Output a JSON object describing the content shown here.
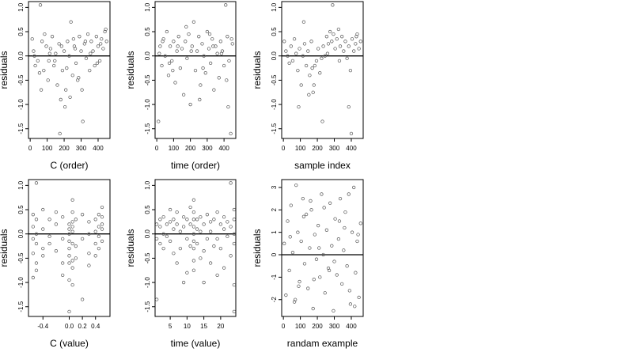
{
  "chart_data": [
    {
      "type": "scatter",
      "title": "",
      "xlabel": "C (order)",
      "ylabel": "residuals",
      "xlim": [
        -10,
        470
      ],
      "ylim": [
        -1.7,
        1.12
      ],
      "xticks": [
        0,
        100,
        200,
        300,
        400
      ],
      "xtick_labels": [
        "0",
        "100",
        "200",
        "300",
        "400"
      ],
      "yticks": [
        1.0,
        0.5,
        0.0,
        -0.5,
        -1.0,
        -1.5
      ],
      "ytick_labels": [
        "1.0",
        "0.5",
        "0.0",
        "-0.5",
        "-1.0",
        "-1.5"
      ],
      "reference_line_y": 0,
      "grid": false,
      "series": [
        {
          "x": [
            12,
            20,
            30,
            45,
            60,
            70,
            80,
            85,
            95,
            105,
            110,
            120,
            130,
            140,
            150,
            160,
            170,
            180,
            190,
            200,
            205,
            210,
            220,
            230,
            240,
            250,
            255,
            260,
            270,
            280,
            290,
            300,
            310,
            320,
            330,
            340,
            350,
            360,
            370,
            380,
            390,
            400,
            410,
            420,
            430,
            440,
            450,
            65,
            175,
            235,
            305,
            395,
            25,
            55,
            115,
            145,
            185,
            215,
            265,
            285,
            325,
            355,
            415,
            445
          ],
          "y": [
            0.35,
            0.1,
            -0.2,
            -0.1,
            1.05,
            0.3,
            -0.3,
            0.45,
            0.2,
            -0.5,
            -0.1,
            0.15,
            0.4,
            -0.2,
            0.05,
            -0.6,
            0.25,
            -0.9,
            -0.3,
            0.1,
            -1.05,
            -0.7,
            0.3,
            0.0,
            0.7,
            -0.4,
            0.35,
            0.2,
            -0.15,
            -0.5,
            0.4,
            0.1,
            -1.35,
            0.25,
            -0.05,
            0.45,
            -0.3,
            0.3,
            0.1,
            -0.2,
            0.4,
            0.2,
            -0.1,
            0.35,
            0.15,
            0.5,
            0.3,
            -0.7,
            -1.6,
            -0.85,
            -0.7,
            -0.15,
            0.0,
            -0.35,
            0.05,
            -0.1,
            0.2,
            -0.25,
            0.15,
            -0.45,
            0.3,
            0.05,
            0.25,
            0.55
          ]
        }
      ]
    },
    {
      "type": "scatter",
      "title": "",
      "xlabel": "time (order)",
      "ylabel": "residuals",
      "xlim": [
        -10,
        470
      ],
      "ylim": [
        -1.7,
        1.12
      ],
      "xticks": [
        0,
        100,
        200,
        300,
        400
      ],
      "xtick_labels": [
        "0",
        "100",
        "200",
        "300",
        "400"
      ],
      "yticks": [
        1.0,
        0.5,
        0.0,
        -0.5,
        -1.0,
        -1.5
      ],
      "ytick_labels": [
        "1.0",
        "0.5",
        "0.0",
        "-0.5",
        "-1.0",
        "-1.5"
      ],
      "reference_line_y": 0,
      "grid": false,
      "series": [
        {
          "x": [
            10,
            20,
            30,
            40,
            50,
            60,
            70,
            80,
            90,
            100,
            110,
            120,
            130,
            140,
            150,
            160,
            170,
            180,
            190,
            200,
            210,
            220,
            230,
            240,
            250,
            260,
            270,
            280,
            290,
            300,
            310,
            320,
            330,
            340,
            350,
            360,
            370,
            380,
            390,
            400,
            410,
            420,
            430,
            440,
            450,
            15,
            95,
            175,
            255,
            335,
            415,
            445,
            35,
            75,
            125,
            205,
            275,
            315,
            385,
            425
          ],
          "y": [
            -1.35,
            0.2,
            -0.2,
            0.35,
            0.0,
            0.5,
            -0.4,
            0.2,
            -0.1,
            0.3,
            -0.55,
            0.1,
            0.4,
            -0.25,
            0.15,
            -0.8,
            0.3,
            -0.05,
            0.45,
            -1.0,
            0.2,
            0.7,
            -0.3,
            0.1,
            0.4,
            -0.6,
            0.25,
            0.0,
            -0.35,
            0.5,
            0.15,
            -0.15,
            0.35,
            -0.7,
            0.2,
            0.05,
            -0.45,
            0.3,
            0.1,
            -0.2,
            1.05,
            0.4,
            -0.1,
            -1.6,
            0.25,
            0.05,
            -0.3,
            0.6,
            -0.9,
            0.2,
            -0.5,
            0.35,
            0.3,
            -0.15,
            0.2,
            0.1,
            -0.25,
            0.45,
            0.05,
            -1.05
          ]
        }
      ]
    },
    {
      "type": "scatter",
      "title": "",
      "xlabel": "sample index",
      "ylabel": "residuals",
      "xlim": [
        -10,
        470
      ],
      "ylim": [
        -1.7,
        1.12
      ],
      "xticks": [
        0,
        100,
        200,
        300,
        400
      ],
      "xtick_labels": [
        "0",
        "100",
        "200",
        "300",
        "400"
      ],
      "yticks": [
        1.0,
        0.5,
        0.0,
        -0.5,
        -1.0,
        -1.5
      ],
      "ytick_labels": [
        "1.0",
        "0.5",
        "0.0",
        "-0.5",
        "-1.0",
        "-1.5"
      ],
      "reference_line_y": 0,
      "grid": false,
      "series": [
        {
          "x": [
            5,
            15,
            25,
            35,
            45,
            55,
            65,
            75,
            85,
            95,
            105,
            115,
            125,
            135,
            145,
            155,
            165,
            175,
            185,
            195,
            205,
            215,
            225,
            235,
            245,
            255,
            265,
            275,
            285,
            295,
            305,
            315,
            325,
            335,
            345,
            355,
            365,
            375,
            385,
            395,
            405,
            415,
            425,
            435,
            445,
            455,
            90,
            150,
            180,
            230,
            290,
            385,
            400,
            120,
            170,
            260,
            330,
            430
          ],
          "y": [
            0.3,
            0.1,
            0.0,
            -0.15,
            0.2,
            -0.1,
            0.35,
            0.05,
            -0.3,
            0.15,
            -0.6,
            0.0,
            0.25,
            -0.2,
            0.1,
            -0.4,
            0.3,
            -0.75,
            -0.2,
            -0.1,
            0.15,
            -0.35,
            -0.05,
            0.2,
            0.0,
            0.4,
            0.25,
            0.5,
            0.3,
            0.45,
            0.15,
            0.35,
            0.55,
            0.2,
            0.4,
            0.1,
            0.3,
            -0.05,
            0.2,
            -0.3,
            0.35,
            0.1,
            0.25,
            0.45,
            0.15,
            0.3,
            -1.05,
            -0.8,
            -0.6,
            -1.35,
            1.05,
            -1.05,
            -1.6,
            0.7,
            -0.25,
            0.05,
            -0.1,
            0.4
          ]
        }
      ]
    },
    {
      "type": "scatter",
      "title": "",
      "xlabel": "C (value)",
      "ylabel": "residuals",
      "xlim": [
        -0.62,
        0.62
      ],
      "ylim": [
        -1.7,
        1.12
      ],
      "xticks": [
        -0.4,
        0.0,
        0.2,
        0.4
      ],
      "xtick_labels": [
        "-0.4",
        "0.0",
        "0.2",
        "0.4"
      ],
      "yticks": [
        1.0,
        0.5,
        0.0,
        -0.5,
        -1.0,
        -1.5
      ],
      "ytick_labels": [
        "1.0",
        "0.5",
        "0.0",
        "-0.5",
        "-1.0",
        "-1.5"
      ],
      "reference_line_y": 0,
      "grid": false,
      "series": [
        {
          "x": [
            -0.55,
            -0.55,
            -0.55,
            -0.55,
            -0.55,
            -0.5,
            -0.5,
            -0.5,
            -0.5,
            -0.5,
            -0.5,
            -0.4,
            -0.4,
            -0.4,
            -0.4,
            -0.3,
            -0.3,
            -0.3,
            -0.2,
            -0.2,
            -0.2,
            -0.1,
            -0.1,
            -0.1,
            -0.1,
            0.0,
            0.0,
            0.0,
            0.0,
            0.0,
            0.0,
            0.0,
            0.0,
            0.0,
            0.05,
            0.05,
            0.05,
            0.05,
            0.05,
            0.05,
            0.05,
            0.05,
            0.05,
            0.1,
            0.1,
            0.1,
            0.2,
            0.2,
            0.2,
            0.3,
            0.3,
            0.3,
            0.3,
            0.4,
            0.4,
            0.4,
            0.4,
            0.45,
            0.45,
            0.45,
            0.45,
            0.5,
            0.5,
            0.5,
            0.5,
            0.5
          ],
          "y": [
            0.4,
            0.15,
            -0.1,
            -0.4,
            -0.9,
            1.05,
            0.3,
            0.0,
            -0.2,
            -0.6,
            -0.75,
            0.5,
            0.1,
            -0.3,
            -0.45,
            0.3,
            -0.05,
            -0.2,
            0.45,
            -0.35,
            0.2,
            0.35,
            -0.1,
            -0.6,
            -0.85,
            0.2,
            0.1,
            0.0,
            -0.15,
            -0.3,
            -0.45,
            -0.6,
            -0.95,
            -1.6,
            0.7,
            0.45,
            0.25,
            0.05,
            -0.2,
            -0.55,
            -0.7,
            -1.05,
            0.15,
            0.3,
            -0.25,
            -0.5,
            0.4,
            -0.1,
            -1.35,
            0.25,
            0.0,
            -0.4,
            -0.65,
            0.3,
            0.05,
            -0.2,
            -0.45,
            0.4,
            0.15,
            -0.05,
            -0.3,
            0.55,
            0.35,
            0.2,
            0.1,
            -0.15
          ]
        }
      ]
    },
    {
      "type": "scatter",
      "title": "",
      "xlabel": "time (value)",
      "ylabel": "residuals",
      "xlim": [
        0.5,
        24.5
      ],
      "ylim": [
        -1.7,
        1.12
      ],
      "xticks": [
        5,
        10,
        15,
        20
      ],
      "xtick_labels": [
        "5",
        "10",
        "15",
        "20"
      ],
      "yticks": [
        1.0,
        0.5,
        0.0,
        -0.5,
        -1.0,
        -1.5
      ],
      "ytick_labels": [
        "1.0",
        "0.5",
        "0.0",
        "-0.5",
        "-1.0",
        "-1.5"
      ],
      "reference_line_y": 0,
      "grid": false,
      "series": [
        {
          "x": [
            1,
            1,
            1,
            2,
            2,
            2,
            3,
            3,
            3,
            4,
            4,
            5,
            5,
            5,
            6,
            6,
            6,
            7,
            7,
            7,
            8,
            8,
            9,
            9,
            9,
            10,
            10,
            10,
            11,
            11,
            11,
            12,
            12,
            12,
            12,
            12,
            12,
            12,
            12,
            12,
            13,
            13,
            13,
            14,
            14,
            14,
            15,
            15,
            15,
            16,
            16,
            17,
            17,
            17,
            18,
            18,
            19,
            19,
            19,
            20,
            20,
            21,
            21,
            21,
            22,
            22,
            23,
            23,
            23,
            24,
            24,
            24,
            24,
            24,
            24
          ],
          "y": [
            -1.35,
            -0.1,
            0.2,
            0.15,
            -0.2,
            0.3,
            0.35,
            0.0,
            -0.3,
            -0.05,
            0.2,
            0.5,
            -0.15,
            0.25,
            0.1,
            -0.4,
            0.3,
            0.2,
            -0.6,
            0.45,
            0.05,
            -0.3,
            0.35,
            -1.0,
            0.15,
            0.3,
            -0.1,
            -0.8,
            0.2,
            -0.25,
            0.55,
            0.7,
            0.45,
            0.3,
            0.15,
            0.0,
            -0.15,
            -0.3,
            -0.55,
            -0.75,
            0.3,
            -0.2,
            0.1,
            0.35,
            -0.5,
            0.05,
            0.2,
            -0.35,
            -1.0,
            0.4,
            -0.1,
            0.25,
            -0.6,
            0.05,
            0.3,
            -0.25,
            0.45,
            -0.1,
            -0.85,
            0.2,
            -0.3,
            0.1,
            0.35,
            -0.7,
            0.25,
            -0.05,
            1.05,
            0.15,
            -0.45,
            0.5,
            0.3,
            0.0,
            -0.2,
            -1.05,
            -1.6
          ]
        }
      ]
    },
    {
      "type": "scatter",
      "title": "",
      "xlabel": "randam example",
      "ylabel": "residuals",
      "xlim": [
        -10,
        470
      ],
      "ylim": [
        -2.75,
        3.35
      ],
      "xticks": [
        0,
        100,
        200,
        300,
        400
      ],
      "xtick_labels": [
        "0",
        "100",
        "200",
        "300",
        "400"
      ],
      "yticks": [
        3,
        2,
        1,
        0,
        -1,
        -2
      ],
      "ytick_labels": [
        "3",
        "2",
        "1",
        "0",
        "-1",
        "-2"
      ],
      "reference_line_y": 0,
      "grid": false,
      "series": [
        {
          "x": [
            5,
            15,
            25,
            35,
            45,
            55,
            65,
            75,
            85,
            95,
            105,
            115,
            125,
            135,
            145,
            155,
            165,
            175,
            185,
            195,
            205,
            215,
            225,
            235,
            245,
            255,
            265,
            275,
            285,
            295,
            305,
            315,
            325,
            335,
            345,
            355,
            365,
            375,
            385,
            395,
            405,
            415,
            425,
            435,
            445,
            455,
            70,
            120,
            180,
            240,
            300,
            360,
            420,
            40,
            90,
            160,
            210,
            270,
            330,
            390,
            440
          ],
          "y": [
            0.5,
            -1.8,
            1.5,
            -0.7,
            2.2,
            0.1,
            -2.1,
            3.1,
            1.0,
            -1.2,
            0.6,
            2.5,
            -0.4,
            1.8,
            -1.5,
            0.3,
            2.0,
            -2.4,
            0.9,
            -0.2,
            1.3,
            -1.0,
            2.7,
            0.0,
            -1.7,
            1.1,
            -0.6,
            2.3,
            0.4,
            -2.5,
            1.6,
            -0.9,
            0.7,
            2.5,
            -1.3,
            0.2,
            1.9,
            -0.5,
            2.7,
            -2.2,
            1.0,
            3.0,
            -0.8,
            0.6,
            -1.9,
            1.4,
            -2.0,
            1.7,
            -1.1,
            2.1,
            -0.3,
            1.2,
            -2.3,
            0.8,
            -1.4,
            2.4,
            0.3,
            -0.7,
            1.5,
            -1.6,
            0.9
          ]
        }
      ]
    }
  ]
}
